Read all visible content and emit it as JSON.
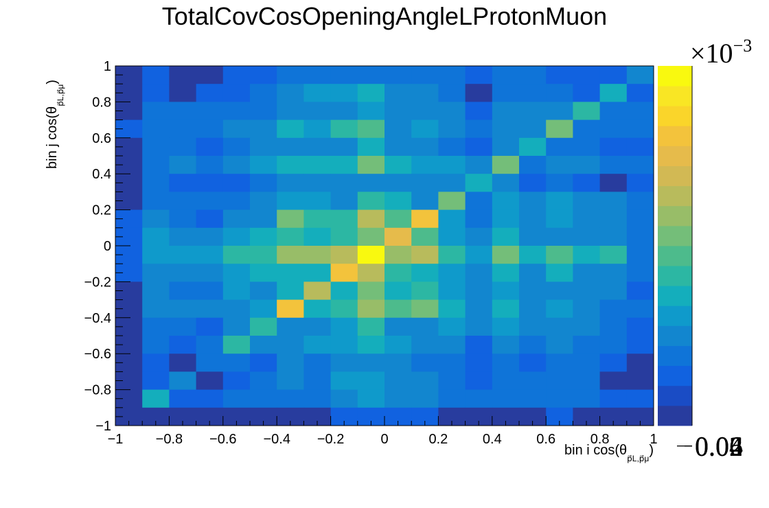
{
  "chart_data": {
    "type": "heatmap",
    "title": "TotalCovCosOpeningAngleLProtonMuon",
    "xlabel": {
      "main": "bin i cos(θ",
      "sub": "p⃗L,p⃗μ",
      "close": ")"
    },
    "ylabel": {
      "main": "bin j cos(θ",
      "sub": "p⃗L,p⃗μ",
      "close": ")"
    },
    "x_bins": [
      -1,
      -0.9,
      -0.8,
      -0.7,
      -0.6,
      -0.5,
      -0.4,
      -0.3,
      -0.2,
      -0.1,
      0,
      0.1,
      0.2,
      0.3,
      0.4,
      0.5,
      0.6,
      0.7,
      0.8,
      0.9,
      1
    ],
    "y_bins": [
      -1,
      -0.9,
      -0.8,
      -0.7,
      -0.6,
      -0.5,
      -0.4,
      -0.3,
      -0.2,
      -0.1,
      0,
      0.1,
      0.2,
      0.3,
      0.4,
      0.5,
      0.6,
      0.7,
      0.8,
      0.9,
      1
    ],
    "xlim": [
      -1,
      1
    ],
    "ylim": [
      -1,
      1
    ],
    "x_ticks": [
      "−1",
      "−0.8",
      "−0.6",
      "−0.4",
      "−0.2",
      "0",
      "0.2",
      "0.4",
      "0.6",
      "0.8",
      "1"
    ],
    "y_ticks": [
      "−1",
      "−0.8",
      "−0.6",
      "−0.4",
      "−0.2",
      "0",
      "0.2",
      "0.4",
      "0.6",
      "0.8",
      "1"
    ],
    "x_tick_values": [
      -1,
      -0.8,
      -0.6,
      -0.4,
      -0.2,
      0,
      0.2,
      0.4,
      0.6,
      0.8,
      1
    ],
    "y_tick_values": [
      -1,
      -0.8,
      -0.6,
      -0.4,
      -0.2,
      0,
      0.2,
      0.4,
      0.6,
      0.8,
      1
    ],
    "z_range": [
      0.004,
      0.074
    ],
    "z_multiplier": "×10",
    "z_multiplier_exp": "−3",
    "z_ticks": [
      "0.02",
      "0.04",
      "0.06"
    ],
    "z_tick_values": [
      0.02,
      0.04,
      0.06
    ],
    "z_units_scale": 0.001,
    "palette": [
      "#283c9e",
      "#1a4cc5",
      "#1162e0",
      "#0f74d8",
      "#1286cf",
      "#0f9acb",
      "#14aebc",
      "#2cb7a3",
      "#4dbb8c",
      "#74be79",
      "#98bd68",
      "#b8bb5c",
      "#d2b954",
      "#e6bb4b",
      "#f3c33c",
      "#fad52a",
      "#f9e624",
      "#f9f90f"
    ],
    "values_rows_top_to_bottom": [
      [
        0.004,
        0.012,
        0.004,
        0.004,
        0.012,
        0.012,
        0.018,
        0.018,
        0.018,
        0.018,
        0.018,
        0.018,
        0.018,
        0.014,
        0.018,
        0.018,
        0.014,
        0.014,
        0.014,
        0.02
      ],
      [
        0.004,
        0.012,
        0.004,
        0.012,
        0.015,
        0.018,
        0.022,
        0.026,
        0.026,
        0.03,
        0.02,
        0.022,
        0.018,
        0.004,
        0.018,
        0.018,
        0.018,
        0.015,
        0.03,
        0.012
      ],
      [
        0.004,
        0.016,
        0.016,
        0.016,
        0.018,
        0.018,
        0.022,
        0.022,
        0.022,
        0.026,
        0.02,
        0.022,
        0.022,
        0.015,
        0.022,
        0.02,
        0.02,
        0.032,
        0.018,
        0.018
      ],
      [
        0.015,
        0.016,
        0.016,
        0.016,
        0.02,
        0.02,
        0.03,
        0.024,
        0.032,
        0.036,
        0.022,
        0.026,
        0.022,
        0.016,
        0.022,
        0.02,
        0.042,
        0.018,
        0.018,
        0.016
      ],
      [
        0.004,
        0.016,
        0.016,
        0.012,
        0.018,
        0.02,
        0.02,
        0.02,
        0.022,
        0.028,
        0.02,
        0.022,
        0.018,
        0.015,
        0.02,
        0.028,
        0.018,
        0.016,
        0.015,
        0.012
      ],
      [
        0.004,
        0.016,
        0.02,
        0.018,
        0.022,
        0.024,
        0.028,
        0.028,
        0.03,
        0.04,
        0.03,
        0.026,
        0.024,
        0.022,
        0.04,
        0.018,
        0.02,
        0.02,
        0.018,
        0.016
      ],
      [
        0.004,
        0.016,
        0.012,
        0.012,
        0.012,
        0.016,
        0.022,
        0.02,
        0.02,
        0.02,
        0.02,
        0.02,
        0.02,
        0.028,
        0.02,
        0.015,
        0.018,
        0.015,
        0.004,
        0.012
      ],
      [
        0.004,
        0.016,
        0.016,
        0.016,
        0.018,
        0.02,
        0.026,
        0.026,
        0.022,
        0.034,
        0.03,
        0.022,
        0.04,
        0.018,
        0.024,
        0.02,
        0.024,
        0.022,
        0.02,
        0.016
      ],
      [
        0.012,
        0.022,
        0.018,
        0.015,
        0.02,
        0.022,
        0.04,
        0.034,
        0.034,
        0.05,
        0.036,
        0.06,
        0.026,
        0.018,
        0.026,
        0.022,
        0.024,
        0.022,
        0.02,
        0.018
      ],
      [
        0.012,
        0.024,
        0.02,
        0.02,
        0.024,
        0.028,
        0.034,
        0.028,
        0.034,
        0.042,
        0.058,
        0.036,
        0.026,
        0.02,
        0.03,
        0.022,
        0.022,
        0.02,
        0.022,
        0.016
      ],
      [
        0.012,
        0.026,
        0.026,
        0.024,
        0.032,
        0.032,
        0.044,
        0.044,
        0.048,
        0.074,
        0.044,
        0.05,
        0.032,
        0.024,
        0.04,
        0.028,
        0.038,
        0.028,
        0.032,
        0.018
      ],
      [
        0.012,
        0.022,
        0.022,
        0.022,
        0.024,
        0.028,
        0.03,
        0.03,
        0.062,
        0.048,
        0.034,
        0.03,
        0.026,
        0.02,
        0.028,
        0.022,
        0.028,
        0.022,
        0.02,
        0.016
      ],
      [
        0.004,
        0.02,
        0.016,
        0.016,
        0.024,
        0.02,
        0.028,
        0.048,
        0.03,
        0.042,
        0.028,
        0.034,
        0.024,
        0.02,
        0.024,
        0.022,
        0.022,
        0.022,
        0.02,
        0.014
      ],
      [
        0.004,
        0.02,
        0.022,
        0.02,
        0.022,
        0.026,
        0.062,
        0.028,
        0.032,
        0.044,
        0.038,
        0.04,
        0.028,
        0.02,
        0.028,
        0.022,
        0.026,
        0.022,
        0.018,
        0.016
      ],
      [
        0.004,
        0.016,
        0.016,
        0.012,
        0.02,
        0.032,
        0.022,
        0.022,
        0.026,
        0.032,
        0.022,
        0.022,
        0.024,
        0.02,
        0.024,
        0.02,
        0.022,
        0.02,
        0.016,
        0.012
      ],
      [
        0.004,
        0.016,
        0.012,
        0.016,
        0.032,
        0.022,
        0.02,
        0.024,
        0.024,
        0.03,
        0.024,
        0.022,
        0.02,
        0.012,
        0.02,
        0.018,
        0.02,
        0.018,
        0.016,
        0.012
      ],
      [
        0.004,
        0.012,
        0.004,
        0.018,
        0.016,
        0.012,
        0.02,
        0.016,
        0.022,
        0.022,
        0.02,
        0.016,
        0.016,
        0.012,
        0.016,
        0.012,
        0.016,
        0.016,
        0.012,
        0.004
      ],
      [
        0.004,
        0.012,
        0.02,
        0.004,
        0.012,
        0.016,
        0.022,
        0.016,
        0.024,
        0.024,
        0.02,
        0.02,
        0.016,
        0.012,
        0.018,
        0.016,
        0.016,
        0.016,
        0.004,
        0.004
      ],
      [
        0.004,
        0.028,
        0.012,
        0.012,
        0.016,
        0.016,
        0.018,
        0.018,
        0.022,
        0.024,
        0.022,
        0.022,
        0.016,
        0.016,
        0.016,
        0.016,
        0.016,
        0.016,
        0.012,
        0.012
      ],
      [
        0.004,
        0.004,
        0.004,
        0.004,
        0.004,
        0.004,
        0.004,
        0.004,
        0.014,
        0.014,
        0.014,
        0.014,
        0.004,
        0.004,
        0.004,
        0.004,
        0.014,
        0.004,
        0.004,
        0.004
      ]
    ]
  }
}
